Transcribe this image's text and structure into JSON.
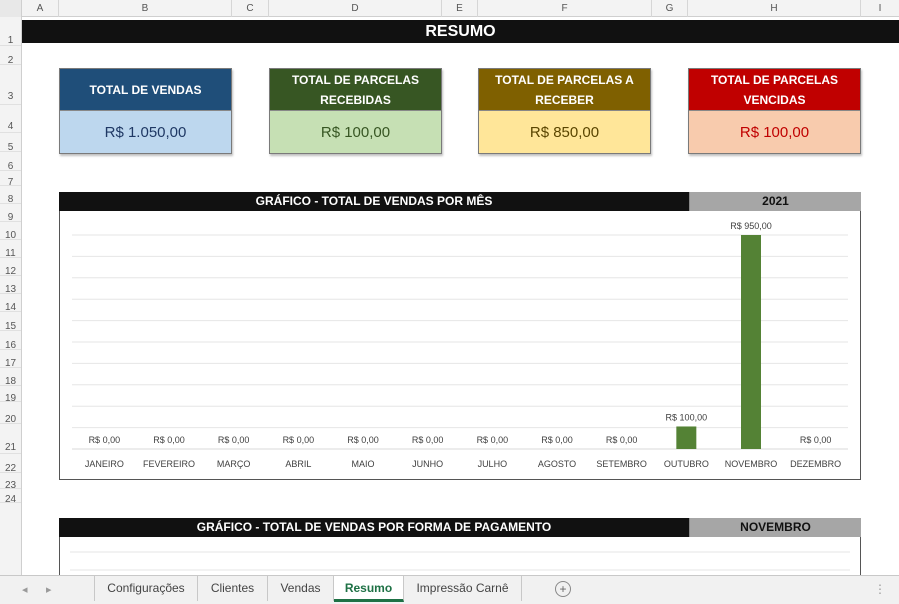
{
  "columns": [
    "A",
    "B",
    "C",
    "D",
    "E",
    "F",
    "G",
    "H",
    "I"
  ],
  "rows": [
    "1",
    "2",
    "3",
    "4",
    "5",
    "6",
    "7",
    "8",
    "9",
    "10",
    "11",
    "12",
    "13",
    "14",
    "15",
    "16",
    "17",
    "18",
    "19",
    "20",
    "21",
    "22",
    "23",
    "24"
  ],
  "title": "RESUMO",
  "cards": [
    {
      "label": "TOTAL DE VENDAS",
      "value": "R$ 1.050,00",
      "head_color": "#1f4e79",
      "body_color": "#bdd7ee",
      "value_color": "#1f3864"
    },
    {
      "label": "TOTAL DE PARCELAS RECEBIDAS",
      "value": "R$ 100,00",
      "head_color": "#375623",
      "body_color": "#c6e0b4",
      "value_color": "#375623"
    },
    {
      "label": "TOTAL DE PARCELAS A RECEBER",
      "value": "R$ 850,00",
      "head_color": "#7f6000",
      "body_color": "#ffe699",
      "value_color": "#5a4500"
    },
    {
      "label": "TOTAL DE PARCELAS VENCIDAS",
      "value": "R$ 100,00",
      "head_color": "#c00000",
      "body_color": "#f8cbad",
      "value_color": "#c00000"
    }
  ],
  "chart1_header": {
    "title": "GRÁFICO - TOTAL DE VENDAS POR MÊS",
    "year": "2021"
  },
  "chart2_header": {
    "title": "GRÁFICO - TOTAL DE VENDAS POR FORMA DE PAGAMENTO",
    "month": "NOVEMBRO"
  },
  "chart_data": {
    "type": "bar",
    "title": "GRÁFICO - TOTAL DE VENDAS POR MÊS",
    "categories": [
      "JANEIRO",
      "FEVEREIRO",
      "MARÇO",
      "ABRIL",
      "MAIO",
      "JUNHO",
      "JULHO",
      "AGOSTO",
      "SETEMBRO",
      "OUTUBRO",
      "NOVEMBRO",
      "DEZEMBRO"
    ],
    "values": [
      0,
      0,
      0,
      0,
      0,
      0,
      0,
      0,
      0,
      100,
      950,
      0
    ],
    "value_labels": [
      "R$ 0,00",
      "R$ 0,00",
      "R$ 0,00",
      "R$ 0,00",
      "R$ 0,00",
      "R$ 0,00",
      "R$ 0,00",
      "R$ 0,00",
      "R$ 0,00",
      "R$ 100,00",
      "R$ 950,00",
      "R$ 0,00"
    ],
    "ylim": [
      0,
      950
    ],
    "bar_color": "#548235",
    "grid": true,
    "xlabel": "",
    "ylabel": ""
  },
  "tabs": [
    "Configurações",
    "Clientes",
    "Vendas",
    "Resumo",
    "Impressão Carnê"
  ],
  "active_tab": "Resumo"
}
